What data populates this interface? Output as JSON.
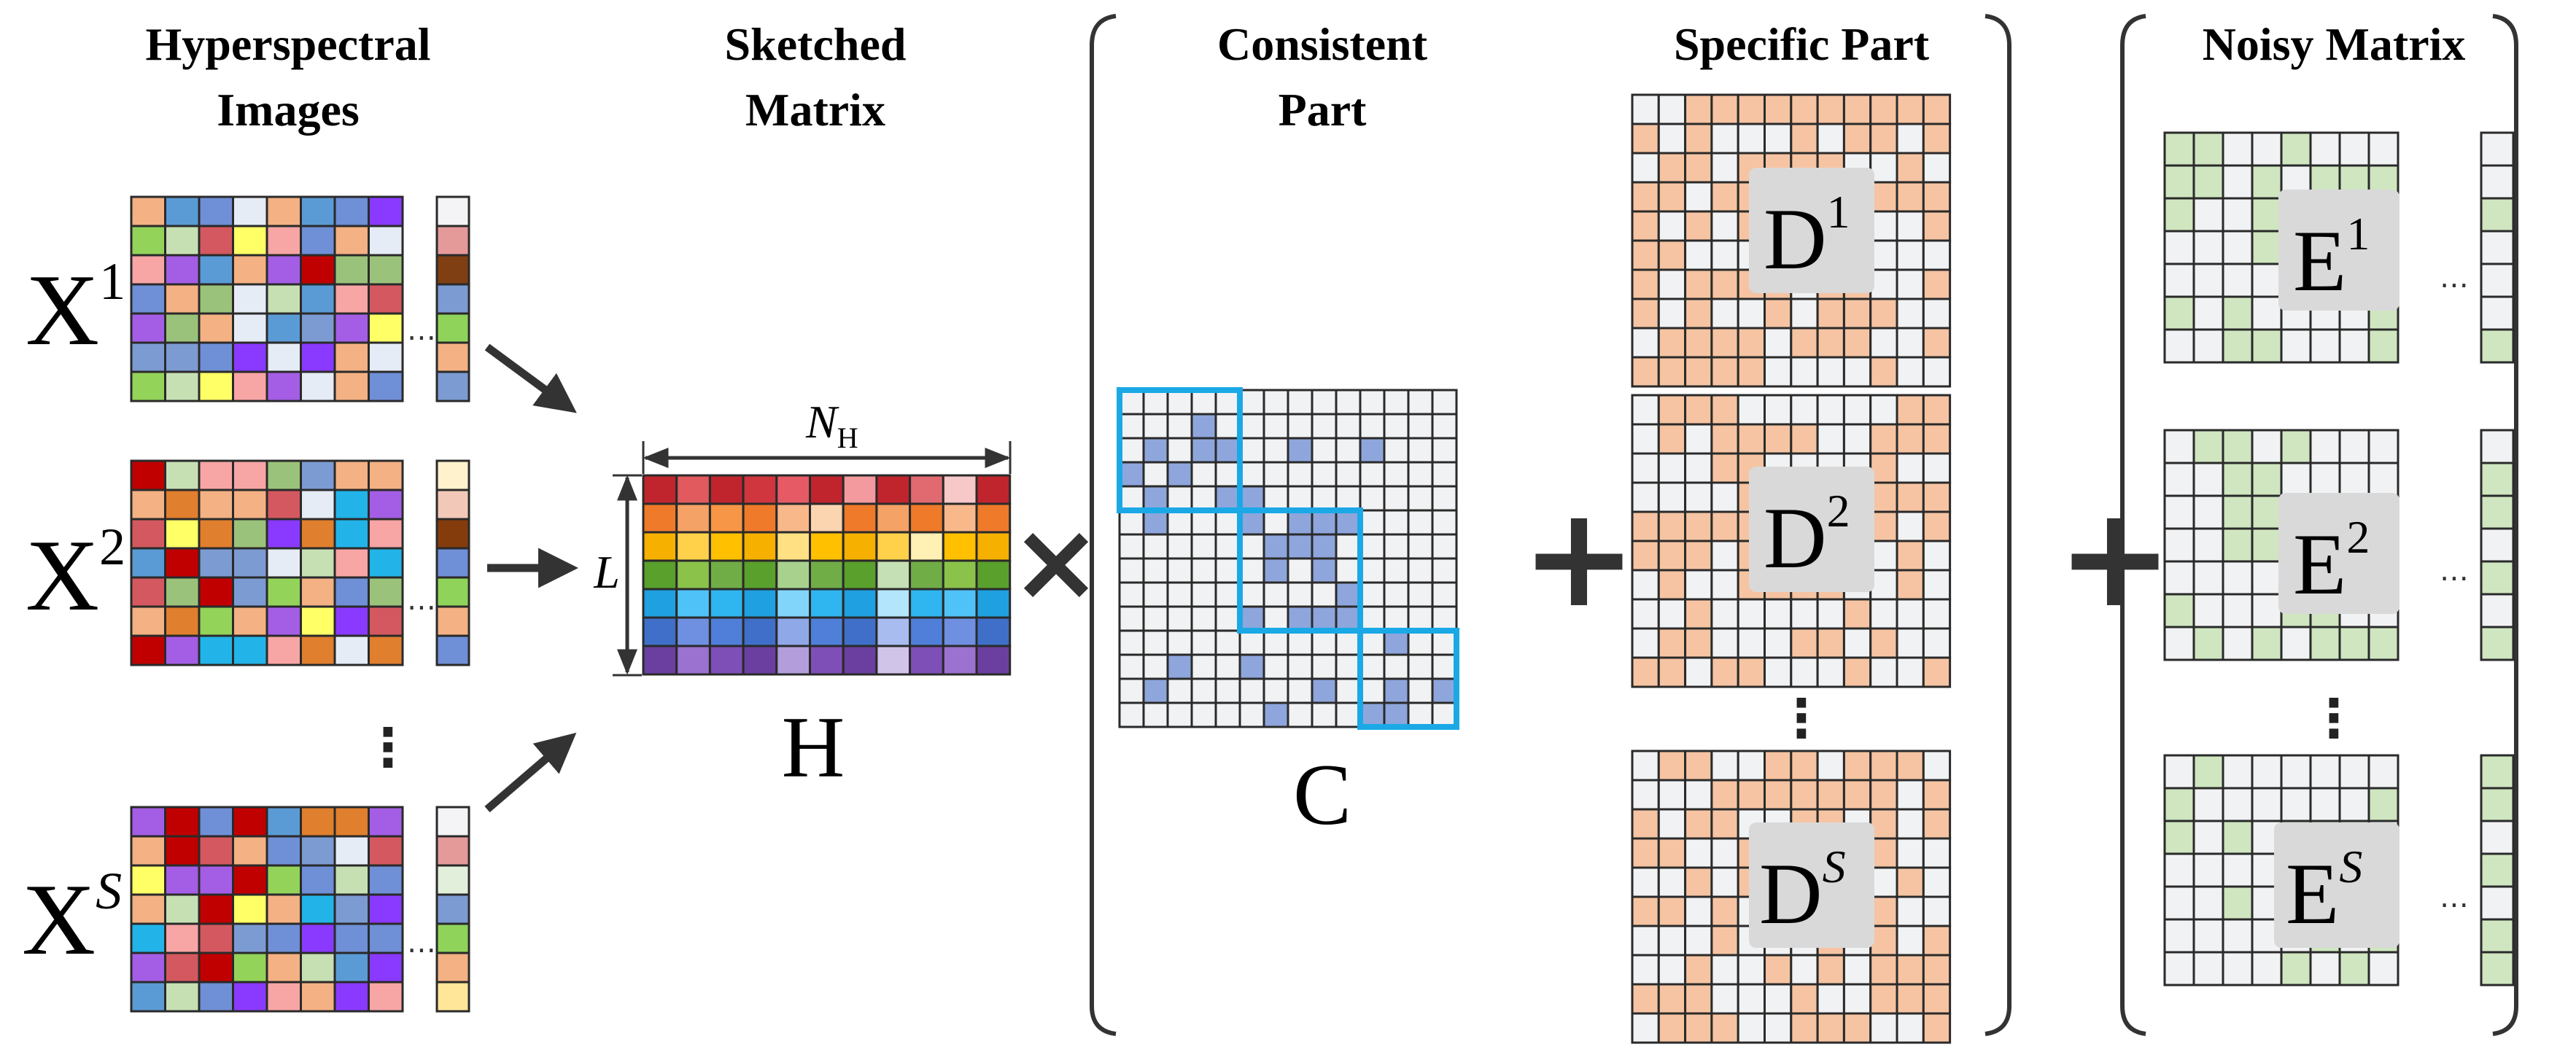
{
  "titles": {
    "hyperspectral": [
      "Hyperspectral",
      "Images"
    ],
    "sketched": [
      "Sketched",
      "Matrix"
    ],
    "consistent": [
      "Consistent",
      "Part"
    ],
    "specific": "Specific Part",
    "noisy": "Noisy Matrix"
  },
  "labels": {
    "x1": {
      "base": "X",
      "sup": "1"
    },
    "x2": {
      "base": "X",
      "sup": "2"
    },
    "xs": {
      "base": "X",
      "sup": "S"
    },
    "h": "H",
    "nh": {
      "base": "N",
      "sub": "H"
    },
    "l": "L",
    "c": "C",
    "d1": {
      "base": "D",
      "sup": "1"
    },
    "d2": {
      "base": "D",
      "sup": "2"
    },
    "ds": {
      "base": "D",
      "sup": "S"
    },
    "e1": {
      "base": "E",
      "sup": "1"
    },
    "e2": {
      "base": "E",
      "sup": "2"
    },
    "es": {
      "base": "E",
      "sup": "S"
    }
  },
  "operators": {
    "times": "×",
    "plus": "+"
  },
  "ellipsis": {
    "dots": "⋯",
    "vdots": "⋮"
  },
  "colors": {
    "grid_line": "#2a2a2a",
    "empty_cell": "#f1f2f4",
    "consistent_fill": "#8ea6dc",
    "consistent_block": "#1aa9e6",
    "specific_fill": "#f6c4a2",
    "noisy_fill": "#cfe6c0",
    "arrow": "#333333",
    "label_box": "#d9d9d9",
    "x_palette": [
      "#c00000",
      "#6f8fd6",
      "#a45ee5",
      "#e6ecf6",
      "#d4585f",
      "#7c9bd2",
      "#c6e0b4",
      "#f4b183",
      "#5b9bd5",
      "#93d35a",
      "#f8a5a5",
      "#22b4e8",
      "#ffff66",
      "#e07f2d",
      "#8a3aff",
      "#9bc27a"
    ],
    "h_rows": [
      [
        "#c0252e",
        "#e05a5e",
        "#c0252e",
        "#d0363d",
        "#e65a66",
        "#c0252e",
        "#f29a9e",
        "#c0252e",
        "#e06a70",
        "#f6c8c8",
        "#c0252e"
      ],
      [
        "#ee7a2a",
        "#f4a266",
        "#f79646",
        "#ee7a2a",
        "#f8b88a",
        "#fbd4b0",
        "#ee7a2a",
        "#f4a266",
        "#ee7a2a",
        "#f8b88a",
        "#ee7a2a"
      ],
      [
        "#f5b000",
        "#ffd14a",
        "#ffc000",
        "#f5b000",
        "#ffe082",
        "#ffc000",
        "#f5b000",
        "#ffd14a",
        "#fff0b3",
        "#ffc000",
        "#f5b000"
      ],
      [
        "#5aa02c",
        "#8bc34a",
        "#70ad47",
        "#5aa02c",
        "#a9d18e",
        "#70ad47",
        "#5aa02c",
        "#c5e0b4",
        "#70ad47",
        "#8bc34a",
        "#5aa02c"
      ],
      [
        "#1fa0e0",
        "#4fc3f7",
        "#2fb5f0",
        "#1fa0e0",
        "#81d4fa",
        "#2fb5f0",
        "#1fa0e0",
        "#b3e5fc",
        "#2fb5f0",
        "#4fc3f7",
        "#1fa0e0"
      ],
      [
        "#3f6fc8",
        "#6f8fe0",
        "#4f7fd8",
        "#3f6fc8",
        "#8fa8e8",
        "#4f7fd8",
        "#3f6fc8",
        "#a8bcf0",
        "#4f7fd8",
        "#6f8fe0",
        "#3f6fc8"
      ],
      [
        "#6a3fa0",
        "#9b72cf",
        "#7f4fb8",
        "#6a3fa0",
        "#b39ddb",
        "#7f4fb8",
        "#6a3fa0",
        "#d1c4e9",
        "#7f4fb8",
        "#9b72cf",
        "#6a3fa0"
      ]
    ],
    "x_vector_1": [
      "#f4f4f6",
      "#e59a9a",
      "#7f3f12",
      "#7c9bd2",
      "#8fd35a",
      "#f4b183",
      "#7c9bd2"
    ],
    "x_vector_2": [
      "#fff2cc",
      "#f2c9b8",
      "#843c0c",
      "#6f8fd6",
      "#8fd35a",
      "#f4b183",
      "#6f8fd6"
    ],
    "x_vector_s": [
      "#f4f4f6",
      "#e59a9a",
      "#e2efda",
      "#7c9bd2",
      "#8fd35a",
      "#f4b183",
      "#ffe699"
    ]
  }
}
